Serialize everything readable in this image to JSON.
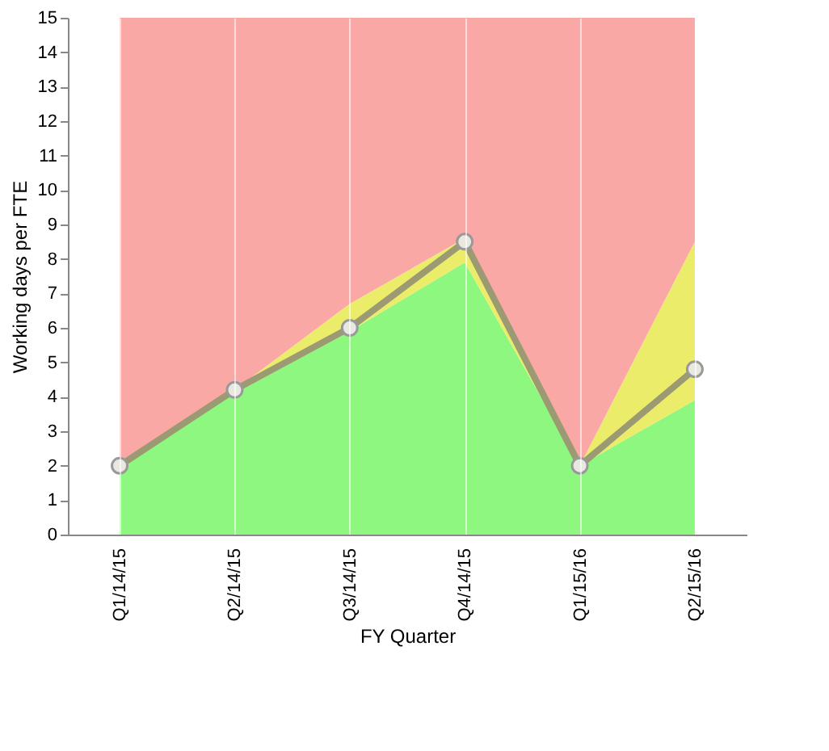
{
  "chart_data": {
    "type": "area",
    "stacked": true,
    "xlabel": "FY Quarter",
    "ylabel": "Working days per FTE",
    "categories": [
      "Q1/14/15",
      "Q2/14/15",
      "Q3/14/15",
      "Q4/14/15",
      "Q1/15/16",
      "Q2/15/16"
    ],
    "series": [
      {
        "color": "#8ef77f",
        "values": [
          2,
          4.1,
          5.9,
          7.9,
          2,
          3.9
        ]
      },
      {
        "color": "#eaec6a",
        "values": [
          0,
          0.1,
          0.8,
          0.7,
          0,
          4.6
        ]
      },
      {
        "color": "#f9a8a6",
        "values": [
          13,
          10.8,
          8.3,
          6.4,
          13,
          6.5
        ]
      },
      {
        "type": "line",
        "color": "#9c9a72",
        "marker": "circle",
        "values": [
          2,
          4.2,
          6,
          8.5,
          2,
          4.8
        ]
      }
    ],
    "ylim": [
      0,
      15
    ],
    "yticks": [
      0,
      1,
      2,
      3,
      4,
      5,
      6,
      7,
      8,
      9,
      10,
      11,
      12,
      13,
      14,
      15
    ],
    "grid": "x",
    "line_style": "solid"
  }
}
